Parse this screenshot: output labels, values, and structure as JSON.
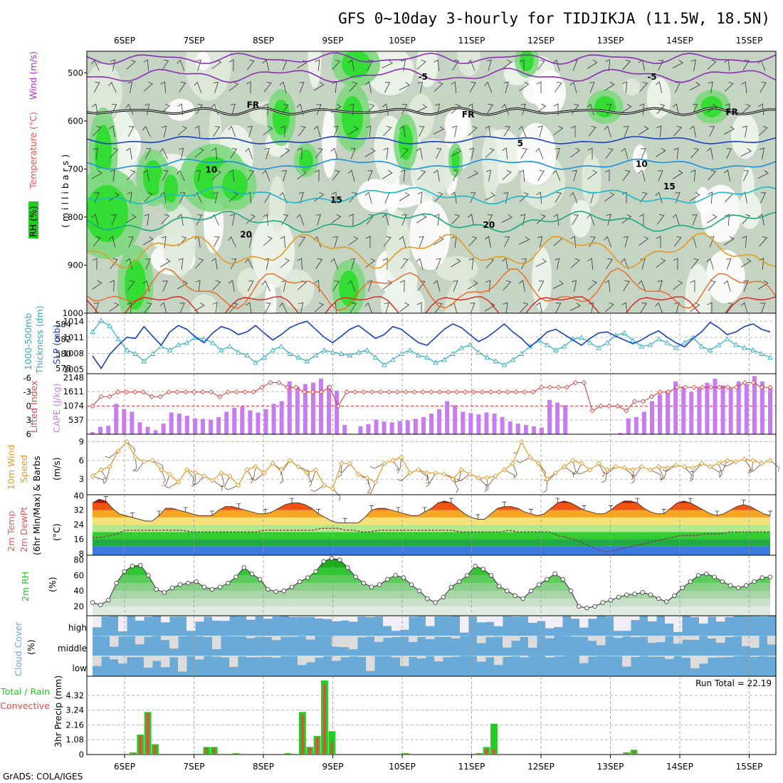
{
  "title": "GFS 0~10day 3-hourly for TIDJIKJA (11.5W, 18.5N)",
  "credit": "GrADS: COLA/IGES",
  "run_total": "Run Total = 22.19",
  "colors": {
    "rh": "#22cc22",
    "temp": "#ee5555",
    "wind": "#aa33cc",
    "cape": "#c77cf0",
    "slp": "#1a3fc7",
    "thick": "#2ab0c0",
    "speed": "#e59a22",
    "precip_total": "#22cc22",
    "precip_conv": "#ee4444",
    "cloud": "#6aaad8"
  },
  "panel_labels": {
    "pressure": {
      "rh": "RH (%)",
      "temp": "Temperature (°C)",
      "wind": "Wind (m/s)",
      "unit": "(millibars)"
    },
    "slp": {
      "thick1": "1000-500mb",
      "thick2": "Thickness (dm)",
      "slp": "SLP (mb)"
    },
    "cape": {
      "li": "Lifted Index",
      "cape": "CAPE (J/kg)"
    },
    "wind10": {
      "l1": "10m Wind",
      "l2": "Speed",
      "l3": "& Barbs",
      "unit": "(m/s)"
    },
    "temp2m": {
      "l1": "2m Temp",
      "l2": "2m DewPt",
      "l3": "(6hr Min/Max)",
      "unit": "(°C)"
    },
    "rh2m": {
      "l1": "2m RH",
      "unit": "(%)"
    },
    "cloud": {
      "l1": "Cloud Cover",
      "unit": "(%)"
    },
    "precip": {
      "l1": "Total / Rain",
      "l2": "Convective",
      "l3": "3hr Precip (mm)"
    }
  },
  "chart_data": [
    {
      "type": "heatmap",
      "panel": "pressure",
      "x_dates": [
        "6SEP",
        "7SEP",
        "8SEP",
        "9SEP",
        "10SEP",
        "11SEP",
        "12SEP",
        "13SEP",
        "14SEP",
        "15SEP"
      ],
      "y_ticks": [
        500,
        600,
        700,
        800,
        900,
        1000
      ],
      "ylabel": "(millibars)",
      "contour_labels": [
        {
          "text": "-5",
          "x_day": 4.3,
          "p": 507
        },
        {
          "text": "-5",
          "x_day": 7.6,
          "p": 507
        },
        {
          "text": "FR",
          "x_day": 1.85,
          "p": 565
        },
        {
          "text": "FR",
          "x_day": 4.95,
          "p": 585
        },
        {
          "text": "FR",
          "x_day": 8.75,
          "p": 580
        },
        {
          "text": "5",
          "x_day": 5.7,
          "p": 645
        },
        {
          "text": "10",
          "x_day": 1.25,
          "p": 700
        },
        {
          "text": "10",
          "x_day": 7.45,
          "p": 688
        },
        {
          "text": "15",
          "x_day": 3.05,
          "p": 763
        },
        {
          "text": "15",
          "x_day": 7.85,
          "p": 735
        },
        {
          "text": "20",
          "x_day": 1.75,
          "p": 835
        },
        {
          "text": "20",
          "x_day": 5.25,
          "p": 815
        }
      ]
    },
    {
      "type": "line",
      "panel": "slp",
      "y_ticks_left": [
        578,
        580,
        582,
        584
      ],
      "y_ticks_right": [
        1005,
        1008,
        1011,
        1014
      ],
      "series": [
        {
          "name": "SLP (mb)",
          "values": [
            1007.5,
            1005.2,
            1007.8,
            1009.5,
            1011.0,
            1010.8,
            1013.0,
            1011.2,
            1009.5,
            1012.0,
            1013.2,
            1012.5,
            1011.0,
            1010.0,
            1011.8,
            1013.0,
            1012.5,
            1011.5,
            1012.0,
            1013.2,
            1011.8,
            1010.5,
            1011.5,
            1012.8,
            1013.5,
            1014.0,
            1012.5,
            1011.0,
            1010.0,
            1011.2,
            1012.5,
            1013.2,
            1012.0,
            1010.8,
            1011.5,
            1013.0,
            1012.5,
            1011.2,
            1010.0,
            1009.5,
            1011.0,
            1012.5,
            1013.5,
            1012.8,
            1011.5,
            1010.2,
            1011.0,
            1012.2,
            1013.5,
            1012.0,
            1010.8,
            1009.2,
            1010.5,
            1012.0,
            1012.5,
            1011.5,
            1010.5,
            1009.5,
            1010.8,
            1011.8,
            1012.0,
            1011.2,
            1010.5,
            1009.8,
            1010.5,
            1011.5,
            1012.2,
            1011.0,
            1010.0,
            1009.2,
            1010.8,
            1012.0,
            1013.8,
            1012.8,
            1011.5,
            1012.0,
            1013.0,
            1013.5,
            1012.5,
            1012.0
          ]
        },
        {
          "name": "Thickness (dm)",
          "values": [
            583.0,
            584.5,
            583.8,
            582.0,
            580.5,
            580.0,
            579.0,
            580.0,
            581.0,
            580.5,
            581.2,
            581.5,
            582.2,
            582.0,
            581.5,
            580.5,
            581.0,
            580.2,
            579.8,
            578.8,
            579.5,
            580.5,
            581.0,
            580.0,
            579.5,
            579.0,
            579.8,
            580.5,
            580.2,
            580.0,
            579.8,
            580.2,
            580.5,
            579.5,
            578.5,
            579.2,
            580.0,
            580.5,
            579.8,
            579.5,
            578.8,
            579.2,
            580.0,
            580.8,
            581.2,
            580.2,
            579.5,
            579.0,
            578.5,
            579.2,
            580.0,
            581.0,
            581.8,
            581.2,
            580.5,
            581.0,
            582.0,
            582.2,
            581.5,
            580.8,
            581.5,
            582.5,
            582.8,
            581.8,
            581.0,
            581.2,
            582.0,
            581.5,
            580.8,
            581.5,
            582.2,
            581.0,
            580.5,
            581.2,
            582.0,
            581.2,
            580.8,
            580.5,
            580.0,
            579.5
          ]
        }
      ]
    },
    {
      "type": "bar",
      "panel": "cape",
      "y_ticks_left": [
        "6",
        "3",
        "0",
        "-3",
        "-6"
      ],
      "y_ticks_right": [
        537,
        1074,
        1611,
        2148
      ],
      "series": [
        {
          "name": "CAPE (J/kg)",
          "values": [
            80,
            280,
            320,
            1150,
            950,
            850,
            450,
            280,
            150,
            400,
            820,
            780,
            700,
            600,
            580,
            550,
            650,
            850,
            1000,
            1050,
            900,
            820,
            950,
            1150,
            1250,
            2000,
            1800,
            1900,
            1950,
            2100,
            1850,
            1650,
            350,
            0,
            300,
            380,
            550,
            480,
            450,
            500,
            520,
            580,
            650,
            780,
            950,
            1250,
            1100,
            850,
            800,
            750,
            820,
            780,
            650,
            480,
            400,
            350,
            300,
            250,
            1300,
            1200,
            1100,
            0,
            0,
            0,
            0,
            0,
            0,
            50,
            600,
            650,
            850,
            1250,
            1500,
            1650,
            2000,
            1800,
            1600,
            1750,
            1950,
            2100,
            1850,
            1750,
            2000,
            1900,
            2200,
            2000,
            1800
          ]
        },
        {
          "name": "Lifted Index",
          "values": [
            0,
            -2,
            -2,
            -3,
            -3,
            -3,
            -3,
            -2,
            -2,
            -3,
            -3,
            -3,
            -3,
            -3,
            -3,
            -2,
            -3,
            -3,
            -3,
            -3,
            -4,
            -5,
            -5,
            -4,
            -4,
            -3,
            -3,
            -3,
            -4,
            0,
            -3,
            -3,
            -3,
            -3,
            -3,
            -3,
            -3,
            -3,
            -3,
            -3,
            -3,
            -3,
            -3,
            -3,
            -3,
            -3,
            -3,
            -3,
            -3,
            -3,
            -3,
            -3,
            -3,
            -4,
            -4,
            -4,
            -4,
            -5,
            -5,
            1,
            0,
            0,
            0,
            1,
            -1,
            -1,
            -2,
            -3,
            -3,
            -4,
            -4,
            -4,
            -4,
            -4,
            -4,
            -4,
            -4,
            -5,
            -5,
            -4,
            -4
          ]
        }
      ]
    },
    {
      "type": "line",
      "panel": "wind10",
      "y_ticks": [
        3,
        6,
        9
      ],
      "series": [
        {
          "name": "Speed",
          "values": [
            3.5,
            4.5,
            5.0,
            7.5,
            9.0,
            6.5,
            5.8,
            6.0,
            4.5,
            3.8,
            2.5,
            4.5,
            4.0,
            3.5,
            2.8,
            4.0,
            3.5,
            2.0,
            4.5,
            5.0,
            4.0,
            5.5,
            4.5,
            6.0,
            5.0,
            4.0,
            4.5,
            2.0,
            1.5,
            5.5,
            5.5,
            3.8,
            3.2,
            2.5,
            5.5,
            6.0,
            6.5,
            4.0,
            4.5,
            4.0,
            4.0,
            3.8,
            3.0,
            4.5,
            3.8,
            3.2,
            3.2,
            3.5,
            4.5,
            5.5,
            9.0,
            6.5,
            5.5,
            3.0,
            4.0,
            5.0,
            6.0,
            5.5,
            4.5,
            5.5,
            4.5,
            5.0,
            4.8,
            4.5,
            5.0,
            4.5,
            5.0,
            4.8,
            5.2,
            5.0,
            4.8,
            5.5,
            5.0,
            5.5,
            6.0,
            5.8,
            6.2,
            6.0,
            5.5,
            6.0
          ]
        }
      ]
    },
    {
      "type": "area",
      "panel": "temp2m",
      "y_ticks": [
        8,
        16,
        24,
        32,
        40
      ],
      "series": [
        {
          "name": "2m Temp",
          "values": [
            36,
            38,
            37,
            33,
            30,
            29,
            28,
            27,
            26,
            26,
            29,
            33,
            33,
            32,
            31,
            30,
            29,
            29,
            29,
            32,
            34,
            34,
            33,
            32,
            31,
            30,
            30,
            31,
            33,
            35,
            36,
            36,
            35,
            33,
            30,
            28,
            26,
            25,
            25,
            25,
            25,
            28,
            32,
            33,
            33,
            32,
            31,
            30,
            29,
            29,
            31,
            33,
            36,
            37,
            36,
            33,
            30,
            28,
            27,
            27,
            30,
            33,
            34,
            34,
            33,
            31,
            30,
            29,
            30,
            33,
            36,
            37,
            36,
            34,
            32,
            31,
            30,
            30,
            32,
            35,
            37,
            37,
            36,
            33,
            31,
            30,
            30,
            33,
            36,
            37,
            36,
            34,
            32,
            30,
            29,
            30,
            32,
            34,
            35,
            34,
            32,
            30,
            29
          ]
        },
        {
          "name": "2m DewPt",
          "values": [
            17,
            17,
            18,
            19,
            21,
            21,
            21,
            21,
            21,
            21,
            21,
            21,
            20,
            20,
            20,
            20,
            20,
            20,
            20,
            20,
            20,
            21,
            21,
            21,
            21,
            21,
            21,
            21,
            22,
            22,
            22,
            21,
            21,
            20,
            20,
            21,
            21,
            21,
            21,
            21,
            21,
            21,
            21,
            21,
            21,
            20,
            20,
            20,
            20,
            20,
            20,
            21,
            20,
            20,
            20,
            20,
            20,
            18,
            17,
            16,
            14,
            12,
            10,
            9,
            10,
            11,
            12,
            13,
            14,
            15,
            16,
            17,
            18,
            18,
            18,
            19,
            19,
            19,
            20,
            20,
            20,
            20,
            20,
            20
          ]
        }
      ]
    },
    {
      "type": "area",
      "panel": "rh2m",
      "y_ticks": [
        20,
        40,
        60,
        80
      ],
      "series": [
        {
          "name": "2m RH",
          "values": [
            25,
            22,
            28,
            50,
            65,
            72,
            73,
            60,
            42,
            38,
            44,
            48,
            50,
            52,
            45,
            42,
            45,
            50,
            58,
            70,
            62,
            55,
            42,
            39,
            40,
            45,
            52,
            57,
            65,
            78,
            82,
            80,
            70,
            58,
            50,
            45,
            48,
            55,
            60,
            57,
            48,
            40,
            30,
            25,
            32,
            45,
            52,
            60,
            72,
            68,
            60,
            46,
            40,
            34,
            30,
            40,
            48,
            55,
            62,
            55,
            40,
            20,
            18,
            20,
            25,
            28,
            32,
            35,
            36,
            38,
            35,
            30,
            26,
            34,
            44,
            52,
            60,
            62,
            58,
            52,
            47,
            44,
            47,
            52,
            57,
            58
          ]
        }
      ]
    },
    {
      "type": "heatmap",
      "panel": "cloud",
      "rows": [
        "high",
        "middle",
        "low"
      ]
    },
    {
      "type": "bar",
      "panel": "precip",
      "y_ticks": [
        0,
        1.08,
        2.16,
        3.24,
        4.32
      ],
      "series": [
        {
          "name": "Total",
          "values": [
            0,
            0,
            0,
            0,
            0,
            0.15,
            1.45,
            3.1,
            0.75,
            0.05,
            0,
            0,
            0,
            0,
            0,
            0.55,
            0.55,
            0,
            0,
            0.1,
            0,
            0,
            0,
            0,
            0,
            0,
            0.1,
            0,
            3.1,
            0.55,
            1.35,
            5.4,
            1.7,
            0,
            0,
            0,
            0,
            0,
            0,
            0,
            0,
            0,
            0.1,
            0,
            0,
            0,
            0,
            0,
            0,
            0,
            0,
            0,
            0.1,
            0.55,
            2.25,
            0,
            0,
            0,
            0,
            0,
            0,
            0,
            0,
            0,
            0,
            0,
            0,
            0,
            0,
            0,
            0,
            0,
            0.15,
            0.35,
            0,
            0,
            0,
            0,
            0,
            0,
            0,
            0,
            0,
            0,
            0,
            0,
            0,
            0,
            0,
            0,
            0,
            0
          ]
        },
        {
          "name": "Convective",
          "values": [
            0,
            0,
            0,
            0,
            0,
            0.1,
            1.4,
            3.0,
            0.7,
            0.05,
            0,
            0,
            0,
            0,
            0,
            0.5,
            0.5,
            0,
            0,
            0.08,
            0,
            0,
            0,
            0,
            0,
            0,
            0.08,
            0,
            2.9,
            0.5,
            1.25,
            5.1,
            1.0,
            0,
            0,
            0,
            0,
            0,
            0,
            0,
            0,
            0,
            0.08,
            0,
            0,
            0,
            0,
            0,
            0,
            0,
            0,
            0,
            0.1,
            0.4,
            0.4,
            0,
            0,
            0,
            0,
            0,
            0,
            0,
            0,
            0,
            0,
            0,
            0,
            0,
            0,
            0,
            0,
            0,
            0.12,
            0.3,
            0,
            0,
            0,
            0,
            0,
            0,
            0,
            0,
            0,
            0,
            0,
            0,
            0,
            0,
            0,
            0,
            0,
            0
          ]
        }
      ]
    }
  ]
}
